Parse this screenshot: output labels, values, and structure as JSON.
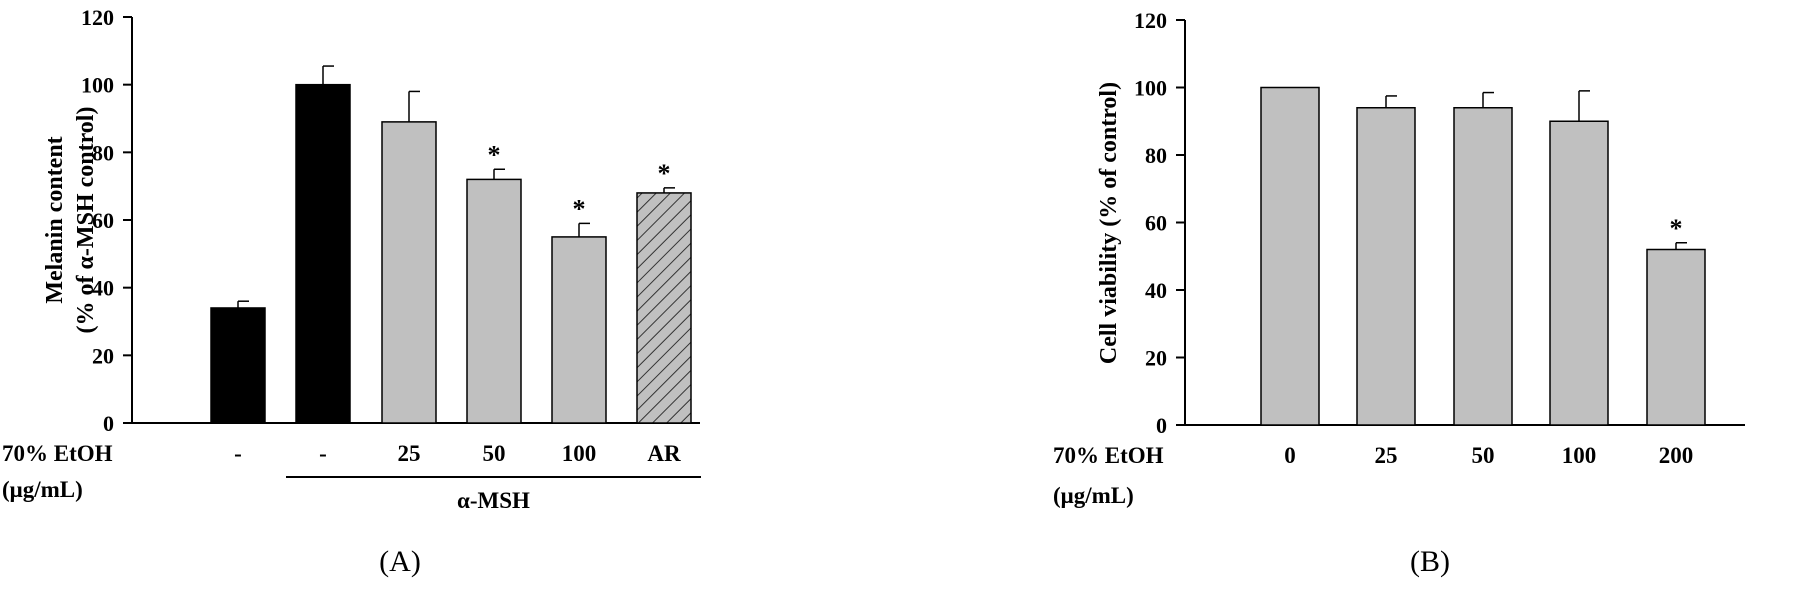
{
  "chart_data": [
    {
      "type": "bar",
      "panel_label": "(A)",
      "ylabel_lines": [
        "Melanin content",
        "(% of α-MSH control)"
      ],
      "ylim": [
        0,
        120
      ],
      "yticks": [
        0,
        20,
        40,
        60,
        80,
        100,
        120
      ],
      "row_label_lines": [
        "70% EtOH",
        "(μg/mL)"
      ],
      "categories": [
        "-",
        "-",
        "25",
        "50",
        "100",
        "AR"
      ],
      "values": [
        34,
        100,
        89,
        72,
        55,
        68
      ],
      "errors": [
        2,
        5.5,
        9,
        3,
        4,
        1.5
      ],
      "significant": [
        false,
        false,
        false,
        true,
        true,
        true
      ],
      "significance_marker": "*",
      "bar_styles": [
        "black",
        "black",
        "gray",
        "gray",
        "gray",
        "hatched"
      ],
      "group_label": "α-MSH",
      "group_span": [
        1,
        5
      ]
    },
    {
      "type": "bar",
      "panel_label": "(B)",
      "ylabel_lines": [
        "Cell viability (% of control)"
      ],
      "ylim": [
        0,
        120
      ],
      "yticks": [
        0,
        20,
        40,
        60,
        80,
        100,
        120
      ],
      "row_label_lines": [
        "70% EtOH",
        "(μg/mL)"
      ],
      "categories": [
        "0",
        "25",
        "50",
        "100",
        "200"
      ],
      "values": [
        100,
        94,
        94,
        90,
        52
      ],
      "errors": [
        0,
        3.5,
        4.5,
        9,
        2
      ],
      "significant": [
        false,
        false,
        false,
        false,
        true
      ],
      "significance_marker": "*",
      "bar_styles": [
        "gray",
        "gray",
        "gray",
        "gray",
        "gray"
      ]
    }
  ],
  "colors": {
    "black_bar": "#000000",
    "gray_bar": "#c0c0c0",
    "axis": "#000000"
  }
}
